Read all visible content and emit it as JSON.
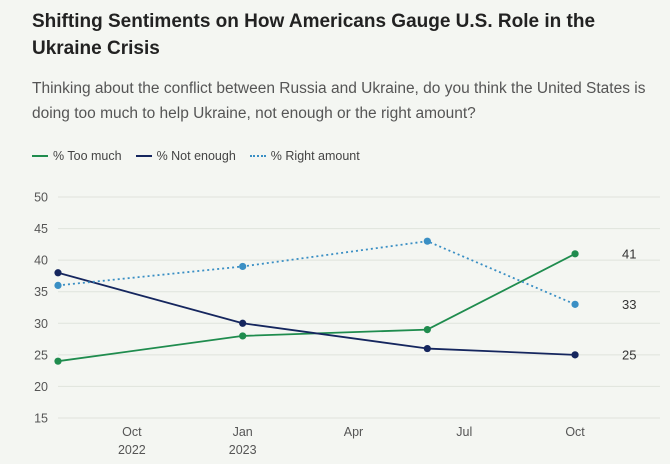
{
  "header": {
    "title": "Shifting Sentiments on How Americans Gauge U.S. Role in the Ukraine Crisis",
    "subtitle": "Thinking about the conflict between Russia and Ukraine, do you think the United States is doing too much to help Ukraine, not enough or the right amount?"
  },
  "legend": {
    "too_much": "% Too much",
    "not_enough": "% Not enough",
    "right_amount": "% Right amount"
  },
  "colors": {
    "too_much": "#1f8c4e",
    "not_enough": "#15265e",
    "right_amount": "#3a8fc4",
    "grid": "#dfe3dc"
  },
  "chart_data": {
    "type": "line",
    "title": "Shifting Sentiments on How Americans Gauge U.S. Role in the Ukraine Crisis",
    "xlabel": "",
    "ylabel": "",
    "ylim": [
      15,
      50
    ],
    "yticks": [
      15,
      20,
      25,
      30,
      35,
      40,
      45,
      50
    ],
    "xlim_months": [
      0,
      15
    ],
    "x_tick_positions": [
      2,
      5,
      8,
      11,
      14
    ],
    "x_tick_labels": [
      [
        "Oct",
        "2022"
      ],
      [
        "Jan",
        "2023"
      ],
      [
        "Apr",
        ""
      ],
      [
        "Jul",
        ""
      ],
      [
        "Oct",
        ""
      ]
    ],
    "x_dates": [
      "Aug 2022",
      "Jan 2023",
      "Jun 2023",
      "Oct 2023"
    ],
    "x": [
      0,
      5,
      10,
      14
    ],
    "series": [
      {
        "key": "too_much",
        "name": "% Too much",
        "style": "solid",
        "values": [
          24,
          28,
          29,
          41
        ]
      },
      {
        "key": "not_enough",
        "name": "% Not enough",
        "style": "solid",
        "values": [
          38,
          30,
          26,
          25
        ]
      },
      {
        "key": "right_amount",
        "name": "% Right amount",
        "style": "dotted",
        "values": [
          36,
          39,
          43,
          33
        ]
      }
    ],
    "end_labels": [
      "41",
      "33",
      "25"
    ]
  }
}
